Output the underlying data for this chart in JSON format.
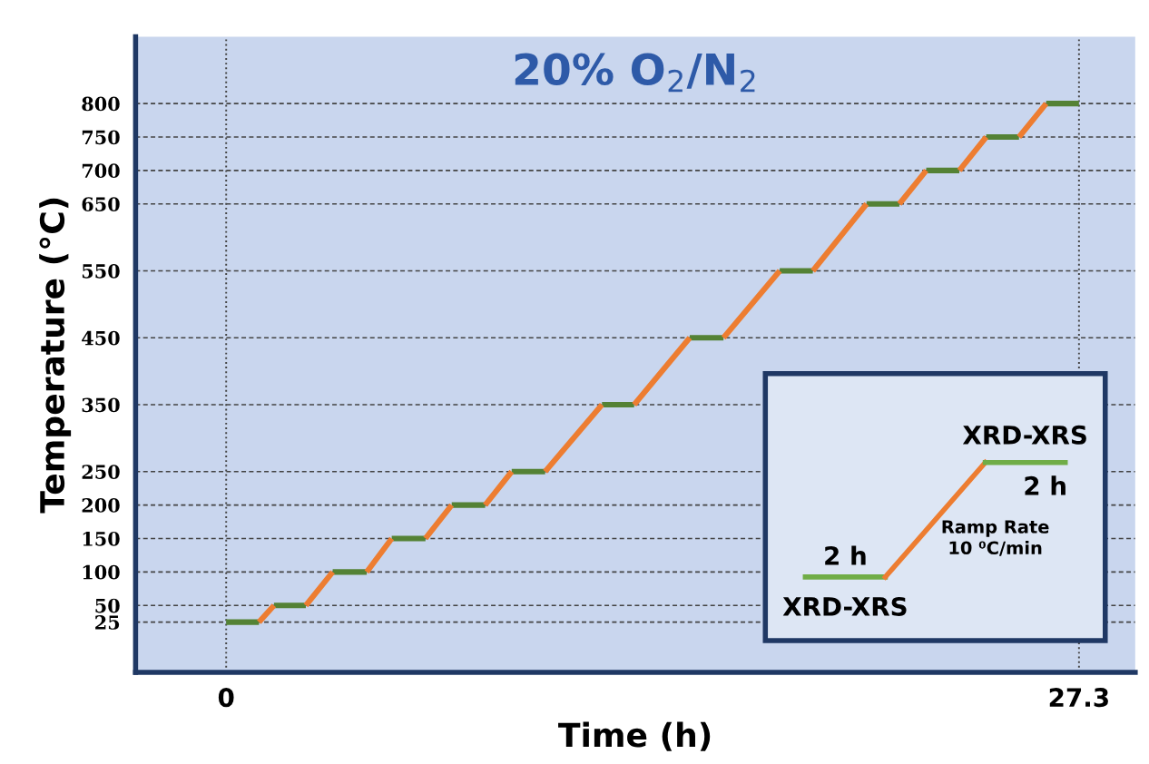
{
  "chart_data": {
    "type": "line",
    "title": "20% O$_{2}$/N$_{2}$",
    "xlabel": "Time (h)",
    "ylabel": "Temperature (°C)",
    "series": [
      {
        "color": "#ed7d31",
        "x": [
          1.05,
          1.53,
          2.0,
          2.55,
          3.41,
          4.0,
          4.5,
          5.3,
          5.8,
          6.38,
          7.22,
          7.8,
          8.29,
          9.14,
          9.7,
          10.21,
          12.03,
          12.5,
          13.06,
          14.84,
          15.4,
          15.92,
          17.72,
          18.2,
          18.78,
          20.5,
          21.0,
          21.55,
          22.41,
          23.0,
          23.47,
          24.33,
          24.8,
          25.38,
          26.25
        ],
        "values": [
          25,
          50,
          null,
          50,
          100,
          null,
          100,
          150,
          null,
          150,
          200,
          null,
          200,
          250,
          null,
          250,
          350,
          null,
          350,
          450,
          null,
          450,
          550,
          null,
          550,
          650,
          null,
          650,
          700,
          null,
          700,
          750,
          null,
          750,
          800
        ]
      },
      {
        "color": "#548235",
        "x": [
          0,
          1.05,
          1.3,
          1.53,
          2.55,
          3.0,
          3.41,
          4.5,
          4.9,
          5.3,
          6.38,
          6.8,
          7.22,
          8.29,
          8.7,
          9.14,
          10.21,
          11.1,
          12.03,
          13.06,
          13.9,
          14.84,
          15.92,
          16.8,
          17.72,
          18.78,
          19.6,
          20.5,
          21.55,
          22.0,
          22.41,
          23.47,
          23.9,
          24.33,
          25.38,
          25.8,
          26.25,
          27.3
        ],
        "values": [
          25,
          25,
          null,
          50,
          50,
          null,
          100,
          100,
          null,
          150,
          150,
          null,
          200,
          200,
          null,
          250,
          250,
          null,
          350,
          350,
          null,
          450,
          450,
          null,
          550,
          550,
          null,
          650,
          650,
          null,
          700,
          700,
          null,
          750,
          750,
          null,
          800,
          800
        ]
      }
    ],
    "xlim": [
      -2.9,
      29.1
    ],
    "xticks": [
      0,
      27.3
    ],
    "ylim": [
      -50,
      900
    ],
    "yticks": [
      25,
      50,
      100,
      150,
      200,
      250,
      350,
      450,
      550,
      650,
      700,
      750,
      800
    ],
    "grid": "y",
    "line_style": "solid",
    "marker": "none",
    "ref_lines": [
      {
        "axis": "x",
        "value": 0,
        "line_style": "dotted"
      },
      {
        "axis": "x",
        "value": 27.3,
        "line_style": "dotted"
      }
    ],
    "annotations": [
      "XRD-XRS",
      "2 h",
      "Ramp Rate\n10 ⁰C/min",
      "2 h",
      "XRD-XRS"
    ]
  }
}
